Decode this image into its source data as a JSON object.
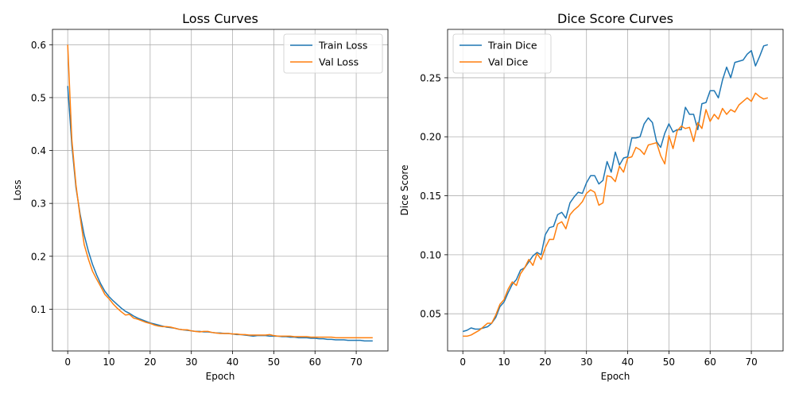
{
  "chart_data": [
    {
      "type": "line",
      "title": "Loss Curves",
      "xlabel": "Epoch",
      "ylabel": "Loss",
      "xlim": [
        -3.7,
        77.7
      ],
      "ylim": [
        0.021,
        0.629
      ],
      "xticks": [
        0,
        10,
        20,
        30,
        40,
        50,
        60,
        70
      ],
      "yticks": [
        0.1,
        0.2,
        0.3,
        0.4,
        0.5,
        0.6
      ],
      "tick_labels_x": [
        "0",
        "10",
        "20",
        "30",
        "40",
        "50",
        "60",
        "70"
      ],
      "tick_labels_y": [
        "0.1",
        "0.2",
        "0.3",
        "0.4",
        "0.5",
        "0.6"
      ],
      "grid": true,
      "legend_position": "upper right",
      "series": [
        {
          "name": "Train Loss",
          "color": "#1f77b4",
          "values": [
            0.522,
            0.41,
            0.33,
            0.28,
            0.24,
            0.21,
            0.185,
            0.165,
            0.148,
            0.134,
            0.124,
            0.116,
            0.109,
            0.102,
            0.096,
            0.092,
            0.087,
            0.083,
            0.08,
            0.077,
            0.074,
            0.072,
            0.07,
            0.068,
            0.066,
            0.065,
            0.064,
            0.062,
            0.061,
            0.06,
            0.059,
            0.058,
            0.058,
            0.057,
            0.057,
            0.056,
            0.055,
            0.055,
            0.054,
            0.054,
            0.053,
            0.052,
            0.052,
            0.051,
            0.05,
            0.049,
            0.05,
            0.05,
            0.05,
            0.049,
            0.049,
            0.049,
            0.048,
            0.048,
            0.047,
            0.047,
            0.046,
            0.046,
            0.046,
            0.045,
            0.045,
            0.044,
            0.044,
            0.043,
            0.043,
            0.042,
            0.042,
            0.042,
            0.041,
            0.041,
            0.041,
            0.041,
            0.04,
            0.04,
            0.04
          ]
        },
        {
          "name": "Val Loss",
          "color": "#ff7f0e",
          "values": [
            0.6,
            0.42,
            0.335,
            0.275,
            0.222,
            0.195,
            0.172,
            0.157,
            0.143,
            0.128,
            0.12,
            0.11,
            0.102,
            0.095,
            0.089,
            0.09,
            0.083,
            0.081,
            0.078,
            0.075,
            0.073,
            0.07,
            0.068,
            0.067,
            0.067,
            0.066,
            0.064,
            0.062,
            0.061,
            0.061,
            0.059,
            0.058,
            0.057,
            0.058,
            0.058,
            0.056,
            0.055,
            0.054,
            0.054,
            0.054,
            0.053,
            0.053,
            0.052,
            0.052,
            0.051,
            0.051,
            0.051,
            0.051,
            0.051,
            0.052,
            0.05,
            0.049,
            0.049,
            0.049,
            0.049,
            0.048,
            0.048,
            0.048,
            0.048,
            0.047,
            0.047,
            0.047,
            0.047,
            0.047,
            0.047,
            0.046,
            0.046,
            0.046,
            0.046,
            0.046,
            0.046,
            0.046,
            0.046,
            0.046,
            0.046
          ]
        }
      ]
    },
    {
      "type": "line",
      "title": "Dice Score Curves",
      "xlabel": "Epoch",
      "ylabel": "Dice Score",
      "xlim": [
        -3.7,
        77.7
      ],
      "ylim": [
        0.0185,
        0.291
      ],
      "xticks": [
        0,
        10,
        20,
        30,
        40,
        50,
        60,
        70
      ],
      "yticks": [
        0.05,
        0.1,
        0.15,
        0.2,
        0.25
      ],
      "tick_labels_x": [
        "0",
        "10",
        "20",
        "30",
        "40",
        "50",
        "60",
        "70"
      ],
      "tick_labels_y": [
        "0.05",
        "0.10",
        "0.15",
        "0.20",
        "0.25"
      ],
      "grid": true,
      "legend_position": "upper left",
      "series": [
        {
          "name": "Train Dice",
          "color": "#1f77b4",
          "values": [
            0.035,
            0.036,
            0.038,
            0.037,
            0.037,
            0.038,
            0.039,
            0.042,
            0.047,
            0.056,
            0.06,
            0.068,
            0.075,
            0.079,
            0.087,
            0.089,
            0.094,
            0.099,
            0.102,
            0.1,
            0.117,
            0.123,
            0.124,
            0.134,
            0.136,
            0.131,
            0.144,
            0.149,
            0.153,
            0.152,
            0.161,
            0.167,
            0.167,
            0.16,
            0.163,
            0.179,
            0.17,
            0.187,
            0.176,
            0.182,
            0.183,
            0.199,
            0.199,
            0.2,
            0.211,
            0.216,
            0.212,
            0.196,
            0.191,
            0.203,
            0.211,
            0.204,
            0.206,
            0.206,
            0.225,
            0.219,
            0.219,
            0.206,
            0.228,
            0.229,
            0.239,
            0.239,
            0.233,
            0.248,
            0.259,
            0.25,
            0.263,
            0.264,
            0.265,
            0.27,
            0.273,
            0.26,
            0.268,
            0.277,
            0.278
          ]
        },
        {
          "name": "Val Dice",
          "color": "#ff7f0e",
          "values": [
            0.031,
            0.031,
            0.032,
            0.034,
            0.036,
            0.039,
            0.042,
            0.042,
            0.049,
            0.058,
            0.062,
            0.071,
            0.077,
            0.074,
            0.084,
            0.089,
            0.096,
            0.091,
            0.101,
            0.096,
            0.106,
            0.113,
            0.113,
            0.126,
            0.128,
            0.122,
            0.134,
            0.138,
            0.141,
            0.145,
            0.152,
            0.155,
            0.153,
            0.142,
            0.144,
            0.167,
            0.166,
            0.162,
            0.175,
            0.17,
            0.182,
            0.183,
            0.191,
            0.189,
            0.185,
            0.193,
            0.194,
            0.195,
            0.184,
            0.177,
            0.201,
            0.19,
            0.205,
            0.209,
            0.207,
            0.208,
            0.196,
            0.212,
            0.207,
            0.223,
            0.213,
            0.219,
            0.215,
            0.224,
            0.219,
            0.223,
            0.221,
            0.227,
            0.23,
            0.233,
            0.23,
            0.237,
            0.234,
            0.232,
            0.233
          ]
        }
      ]
    }
  ]
}
